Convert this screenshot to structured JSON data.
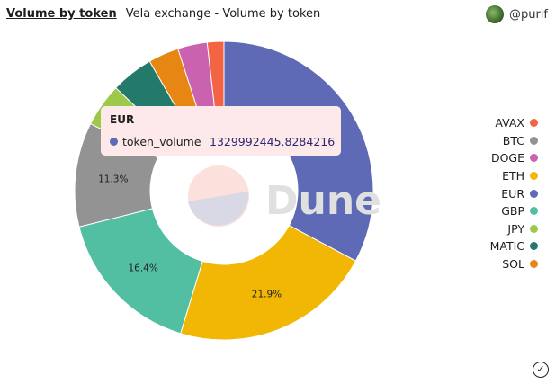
{
  "header": {
    "title": "Volume by token",
    "subtitle": "Vela exchange - Volume by token",
    "user": "@purif"
  },
  "watermark": "Dune",
  "tooltip": {
    "title": "EUR",
    "series": "token_volume",
    "value": "1329992445.8284216",
    "color": "#5e6ab5"
  },
  "chart_data": {
    "type": "pie",
    "donut": true,
    "series_name": "token_volume",
    "slices": [
      {
        "name": "EUR",
        "percent": 32.8,
        "color": "#5e6ab5",
        "label": ""
      },
      {
        "name": "ETH",
        "percent": 21.9,
        "color": "#f2b705",
        "label": "21.9%"
      },
      {
        "name": "GBP",
        "percent": 16.4,
        "color": "#52bfa2",
        "label": "16.4%"
      },
      {
        "name": "BTC",
        "percent": 11.3,
        "color": "#939393",
        "label": "11.3%"
      },
      {
        "name": "JPY",
        "percent": 4.7,
        "color": "#9dc84a",
        "label": ""
      },
      {
        "name": "MATIC",
        "percent": 4.6,
        "color": "#237a6b",
        "label": ""
      },
      {
        "name": "SOL",
        "percent": 3.3,
        "color": "#e68613",
        "label": ""
      },
      {
        "name": "DOGE",
        "percent": 3.2,
        "color": "#cb62b0",
        "label": ""
      },
      {
        "name": "AVAX",
        "percent": 1.8,
        "color": "#f26444",
        "label": ""
      }
    ],
    "legend": [
      "AVAX",
      "BTC",
      "DOGE",
      "ETH",
      "EUR",
      "GBP",
      "JPY",
      "MATIC",
      "SOL"
    ],
    "legend_position": "right"
  }
}
